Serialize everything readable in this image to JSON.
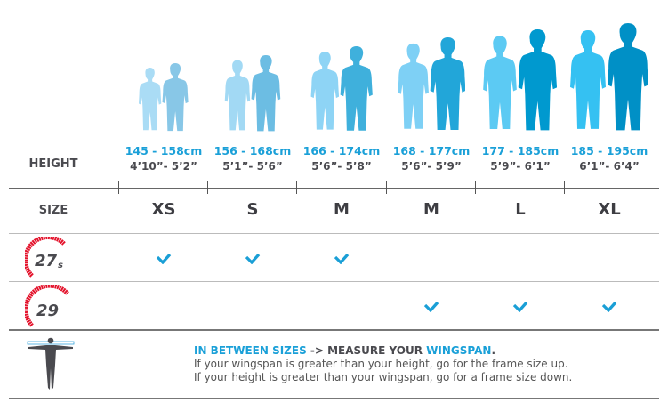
{
  "header": {
    "height_label": "HEIGHT",
    "size_label": "SIZE"
  },
  "columns": [
    {
      "cm": "145 - 158cm",
      "ft": "4’10”- 5’2”",
      "size": "XS",
      "wheel_27_5": true,
      "wheel_29": false,
      "colors": {
        "woman": "#aadcf5",
        "man": "#88c7e7"
      }
    },
    {
      "cm": "156 - 168cm",
      "ft": "5’1”- 5’6”",
      "size": "S",
      "wheel_27_5": true,
      "wheel_29": false,
      "colors": {
        "woman": "#a2d9f4",
        "man": "#6cbde3"
      }
    },
    {
      "cm": "166 - 174cm",
      "ft": "5’6”- 5’8”",
      "size": "M",
      "wheel_27_5": true,
      "wheel_29": false,
      "colors": {
        "woman": "#8ed4f5",
        "man": "#3fb0dc"
      }
    },
    {
      "cm": "168 - 177cm",
      "ft": "5’6”- 5’9”",
      "size": "M",
      "wheel_27_5": false,
      "wheel_29": true,
      "colors": {
        "woman": "#7ed0f5",
        "man": "#22a6d9"
      }
    },
    {
      "cm": "177 - 185cm",
      "ft": "5’9”- 6’1”",
      "size": "L",
      "wheel_27_5": false,
      "wheel_29": true,
      "colors": {
        "woman": "#5ccaf3",
        "man": "#0099cf"
      }
    },
    {
      "cm": "185 - 195cm",
      "ft": "6’1”- 6’4”",
      "size": "XL",
      "wheel_27_5": false,
      "wheel_29": true,
      "colors": {
        "woman": "#35c1f2",
        "man": "#0090c6"
      }
    }
  ],
  "wheels": {
    "w27": {
      "logo": "27.5"
    },
    "w29": {
      "logo": "29"
    }
  },
  "wingspan": {
    "highlight1": "IN BETWEEN SIZES",
    "middle": " -> MEASURE YOUR ",
    "highlight2": "WINGSPAN",
    "end": ".",
    "line1": "If your wingspan is greater than your height, go for the frame size up.",
    "line2": "If your height is greater than your wingspan, go for a frame size down."
  },
  "colors": {
    "accent": "#1aa0d8",
    "logo_red": "#e3122b",
    "text_dark": "#4a4a4f"
  }
}
